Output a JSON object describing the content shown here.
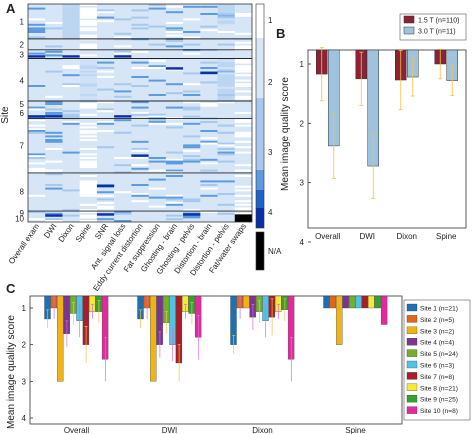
{
  "colors": {
    "c1": "#ffffff",
    "c2": "#d6e6f7",
    "c3": "#a7c9ee",
    "c4": "#5d9be0",
    "c5": "#1f63c8",
    "c6": "#0a2fa8",
    "na": "#000000",
    "tesla15": "#8b2334",
    "tesla30": "#9fc3df",
    "sites": [
      "#1f6fb3",
      "#e0661c",
      "#efb31a",
      "#7a3592",
      "#74b02c",
      "#4ec3e6",
      "#a81f2a",
      "#f7e83a",
      "#35a02f",
      "#e22a9e"
    ],
    "errbar_a": "#f3c145",
    "errbar_b": "#cf73d8"
  },
  "panels": {
    "a": "A",
    "b": "B",
    "c": "C"
  },
  "chart_data": [
    {
      "type": "heatmap",
      "panel": "A",
      "ylabel": "Site",
      "site_labels": [
        "1",
        "2",
        "3",
        "4",
        "5",
        "6",
        "7",
        "8",
        "9",
        "10"
      ],
      "x_labels": [
        "Overall exam",
        "DWI",
        "Dixon",
        "Spine",
        "SNR",
        "Ant. signal loss",
        "Eddy current distortion",
        "Fat suppression",
        "Ghosting - brain",
        "Ghosting - pelvis",
        "Distortion - brain",
        "Distortion - pelvis",
        "Fat/water swaps"
      ],
      "colorbar_ticks": [
        "1",
        "2",
        "3",
        "4",
        "N/A"
      ]
    },
    {
      "type": "bar",
      "panel": "B",
      "categories": [
        "Overall",
        "DWI",
        "Dixon",
        "Spine"
      ],
      "ylabel": "Mean image quality score",
      "ylim": [
        4,
        1
      ],
      "yticks": [
        1,
        2,
        3,
        4
      ],
      "series": [
        {
          "name": "1.5 T (n=110)",
          "values": [
            1.17,
            1.25,
            1.27,
            1.0
          ],
          "err": [
            0.45,
            0.45,
            0.5,
            0.25
          ]
        },
        {
          "name": "3.0 T (n=11)",
          "values": [
            2.38,
            2.72,
            1.22,
            1.28
          ],
          "err": [
            0.55,
            0.55,
            0.32,
            0.25
          ]
        }
      ]
    },
    {
      "type": "bar",
      "panel": "C",
      "categories": [
        "Overall",
        "DWI",
        "Dixon",
        "Spine"
      ],
      "ylabel": "Mean image quality score",
      "ylim": [
        4,
        1
      ],
      "yticks": [
        1,
        2,
        3,
        4
      ],
      "series": [
        {
          "name": "Site 1 (n=21)",
          "values": [
            1.3,
            1.3,
            2.0,
            1.0
          ]
        },
        {
          "name": "Site 2 (n=5)",
          "values": [
            1.0,
            1.0,
            1.0,
            1.0
          ]
        },
        {
          "name": "Site 3 (n=2)",
          "values": [
            3.0,
            3.0,
            1.0,
            2.0
          ]
        },
        {
          "name": "Site 4 (n=4)",
          "values": [
            1.7,
            2.0,
            1.25,
            1.0
          ]
        },
        {
          "name": "Site 5 (n=24)",
          "values": [
            1.15,
            1.4,
            1.1,
            1.0
          ]
        },
        {
          "name": "Site 6 (n=3)",
          "values": [
            1.35,
            2.0,
            1.35,
            1.0
          ]
        },
        {
          "name": "Site 7 (n=8)",
          "values": [
            2.0,
            2.5,
            1.25,
            1.0
          ]
        },
        {
          "name": "Site 8 (n=21)",
          "values": [
            1.1,
            1.1,
            1.1,
            1.0
          ]
        },
        {
          "name": "Site 9 (n=25)",
          "values": [
            1.1,
            1.15,
            1.05,
            1.0
          ]
        },
        {
          "name": "Site 10 (n=8)",
          "values": [
            2.4,
            1.8,
            2.4,
            1.45
          ]
        }
      ]
    }
  ]
}
